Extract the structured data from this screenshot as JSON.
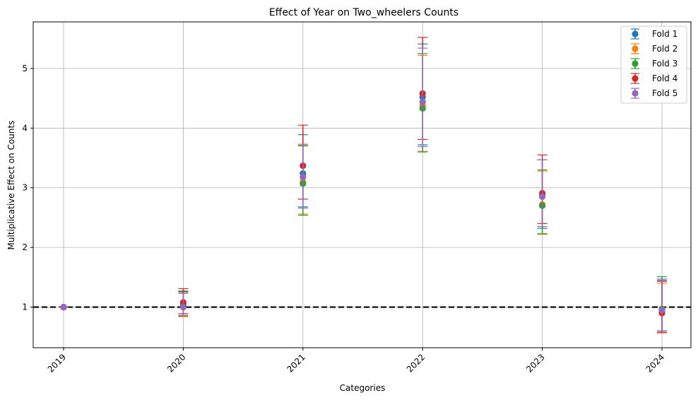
{
  "chart_data": {
    "type": "scatter",
    "title": "Effect of Year on Two_wheelers Counts",
    "xlabel": "Categories",
    "ylabel": "Multiplicative Effect on Counts",
    "categories": [
      "2019",
      "2020",
      "2021",
      "2022",
      "2023",
      "2024"
    ],
    "ylim": [
      0.32,
      5.78
    ],
    "yticks": [
      1,
      2,
      3,
      4,
      5
    ],
    "grid": true,
    "legend_position": "top-right",
    "reference_line": {
      "y": 1,
      "style": "dashed",
      "color": "#000000"
    },
    "series": [
      {
        "name": "Fold 1",
        "color": "#1f77b4",
        "values": [
          1.0,
          1.04,
          3.24,
          4.52,
          2.87,
          0.93
        ],
        "lower": [
          1.0,
          0.85,
          2.68,
          3.72,
          2.32,
          0.6
        ],
        "upper": [
          1.0,
          1.27,
          3.89,
          5.41,
          3.47,
          1.45
        ]
      },
      {
        "name": "Fold 2",
        "color": "#ff7f0e",
        "values": [
          1.0,
          1.02,
          3.1,
          4.38,
          2.72,
          0.92
        ],
        "lower": [
          1.0,
          0.84,
          2.56,
          3.61,
          2.22,
          0.58
        ],
        "upper": [
          1.0,
          1.25,
          3.7,
          5.22,
          3.28,
          1.4
        ]
      },
      {
        "name": "Fold 3",
        "color": "#2ca02c",
        "values": [
          1.0,
          1.04,
          3.07,
          4.33,
          2.7,
          0.97
        ],
        "lower": [
          1.0,
          0.86,
          2.54,
          3.6,
          2.23,
          0.6
        ],
        "upper": [
          1.0,
          1.26,
          3.71,
          5.25,
          3.3,
          1.51
        ]
      },
      {
        "name": "Fold 4",
        "color": "#d62728",
        "values": [
          1.0,
          1.08,
          3.37,
          4.58,
          2.91,
          0.9
        ],
        "lower": [
          1.0,
          0.89,
          2.81,
          3.81,
          2.4,
          0.57
        ],
        "upper": [
          1.0,
          1.31,
          4.05,
          5.52,
          3.55,
          1.43
        ]
      },
      {
        "name": "Fold 5",
        "color": "#9467bd",
        "values": [
          1.0,
          1.0,
          3.18,
          4.44,
          2.85,
          0.95
        ],
        "lower": [
          1.0,
          0.86,
          2.66,
          3.69,
          2.35,
          0.6
        ],
        "upper": [
          1.0,
          1.23,
          3.73,
          5.34,
          3.47,
          1.47
        ]
      }
    ]
  }
}
